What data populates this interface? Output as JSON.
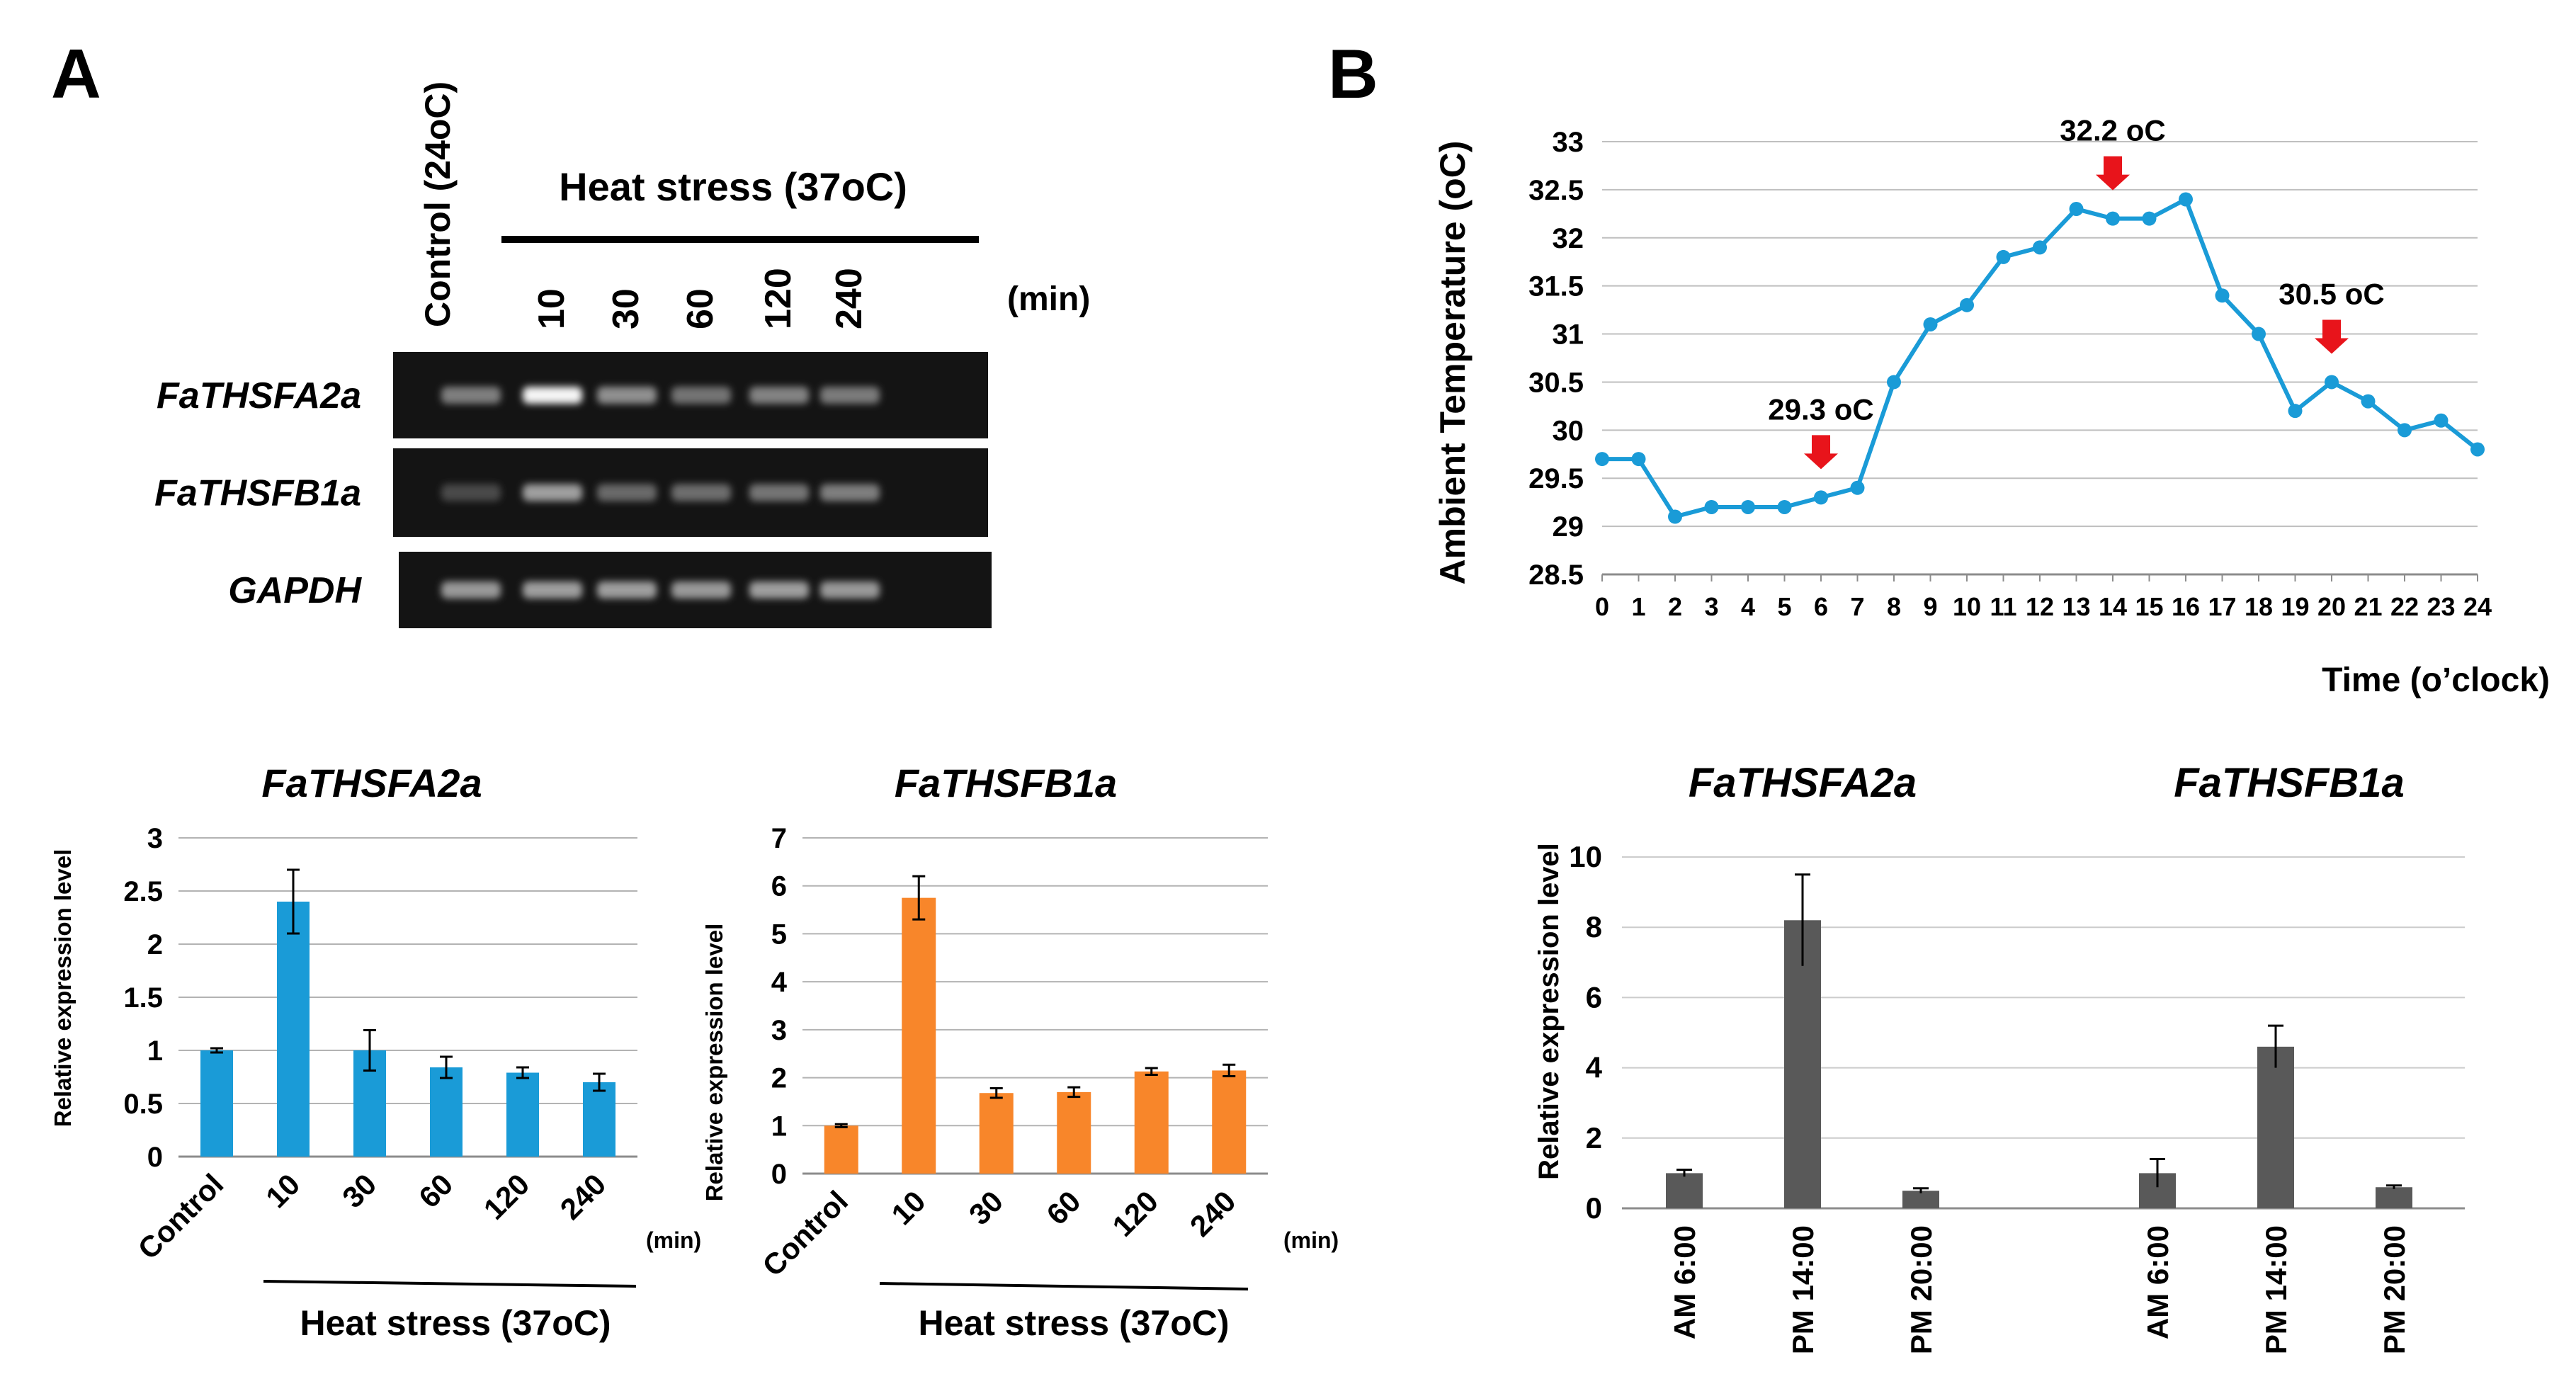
{
  "panels": {
    "a_label": "A",
    "b_label": "B"
  },
  "gel": {
    "control_label": "Control (24oC)",
    "heat_label": "Heat stress (37oC)",
    "min_label": "(min)",
    "lane_labels": [
      "10",
      "30",
      "60",
      "120",
      "240"
    ],
    "rows": [
      {
        "gene": "FaTHSFA2a",
        "intensity": [
          0.4,
          0.95,
          0.48,
          0.35,
          0.42,
          0.38
        ]
      },
      {
        "gene": "FaTHSFB1a",
        "intensity": [
          0.15,
          0.55,
          0.3,
          0.32,
          0.36,
          0.4
        ]
      },
      {
        "gene": "GAPDH",
        "intensity": [
          0.52,
          0.55,
          0.55,
          0.52,
          0.55,
          0.52
        ]
      }
    ]
  },
  "chart_data": [
    {
      "id": "a-left",
      "type": "bar",
      "title": "FaTHSFA2a",
      "ylabel": "Relative expression level",
      "categories": [
        "Control",
        "10",
        "30",
        "60",
        "120",
        "240"
      ],
      "unit_label": "(min)",
      "group_label": "Heat stress (37oC)",
      "values": [
        1.0,
        2.4,
        1.0,
        0.84,
        0.79,
        0.7
      ],
      "errors": [
        0.02,
        0.3,
        0.19,
        0.1,
        0.05,
        0.08
      ],
      "ylim": [
        0,
        3
      ],
      "yticks": [
        "0",
        "0.5",
        "1",
        "1.5",
        "2",
        "2.5",
        "3"
      ],
      "color": "#1a9bd7",
      "grid": true
    },
    {
      "id": "a-right",
      "type": "bar",
      "title": "FaTHSFB1a",
      "ylabel": "Relative expression level",
      "categories": [
        "Control",
        "10",
        "30",
        "60",
        "120",
        "240"
      ],
      "unit_label": "(min)",
      "group_label": "Heat stress (37oC)",
      "values": [
        1.0,
        5.75,
        1.68,
        1.7,
        2.13,
        2.15
      ],
      "errors": [
        0.03,
        0.45,
        0.1,
        0.1,
        0.07,
        0.12
      ],
      "ylim": [
        0,
        7
      ],
      "yticks": [
        "0",
        "1",
        "2",
        "3",
        "4",
        "5",
        "6",
        "7"
      ],
      "color": "#f8862a",
      "grid": true
    },
    {
      "id": "b-line",
      "type": "line",
      "ylabel": "Ambient Temperature (oC)",
      "xlabel": "Time (o’clock)",
      "x": [
        0,
        1,
        2,
        3,
        4,
        5,
        6,
        7,
        8,
        9,
        10,
        11,
        12,
        13,
        14,
        15,
        16,
        17,
        18,
        19,
        20,
        21,
        22,
        23,
        24
      ],
      "y": [
        29.7,
        29.7,
        29.1,
        29.2,
        29.2,
        29.2,
        29.3,
        29.4,
        30.5,
        31.1,
        31.3,
        31.8,
        31.9,
        32.3,
        32.2,
        32.2,
        32.4,
        31.4,
        31.0,
        30.2,
        30.5,
        30.3,
        30.0,
        30.1,
        29.8
      ],
      "ylim": [
        28.5,
        33
      ],
      "yticks": [
        "28.5",
        "29",
        "29.5",
        "30",
        "30.5",
        "31",
        "31.5",
        "32",
        "32.5",
        "33"
      ],
      "color": "#1a9bd7",
      "grid": true,
      "annotations": [
        {
          "x": 6,
          "text": "29.3 oC"
        },
        {
          "x": 14,
          "text": "32.2 oC"
        },
        {
          "x": 20,
          "text": "30.5 oC"
        }
      ],
      "arrow_color": "#e8141b"
    },
    {
      "id": "b-bar",
      "type": "bar",
      "ylabel": "Relative expression level",
      "groups": [
        {
          "title": "FaTHSFA2a",
          "categories": [
            "AM 6:00",
            "PM 14:00",
            "PM 20:00"
          ],
          "values": [
            1.0,
            8.2,
            0.5
          ],
          "errors": [
            0.1,
            1.3,
            0.07
          ]
        },
        {
          "title": "FaTHSFB1a",
          "categories": [
            "AM 6:00",
            "PM 14:00",
            "PM 20:00"
          ],
          "values": [
            1.0,
            4.6,
            0.6
          ],
          "errors": [
            0.4,
            0.6,
            0.05
          ]
        }
      ],
      "ylim": [
        0,
        10
      ],
      "yticks": [
        "0",
        "2",
        "4",
        "6",
        "8",
        "10"
      ],
      "color": "#595959",
      "grid": true
    }
  ]
}
